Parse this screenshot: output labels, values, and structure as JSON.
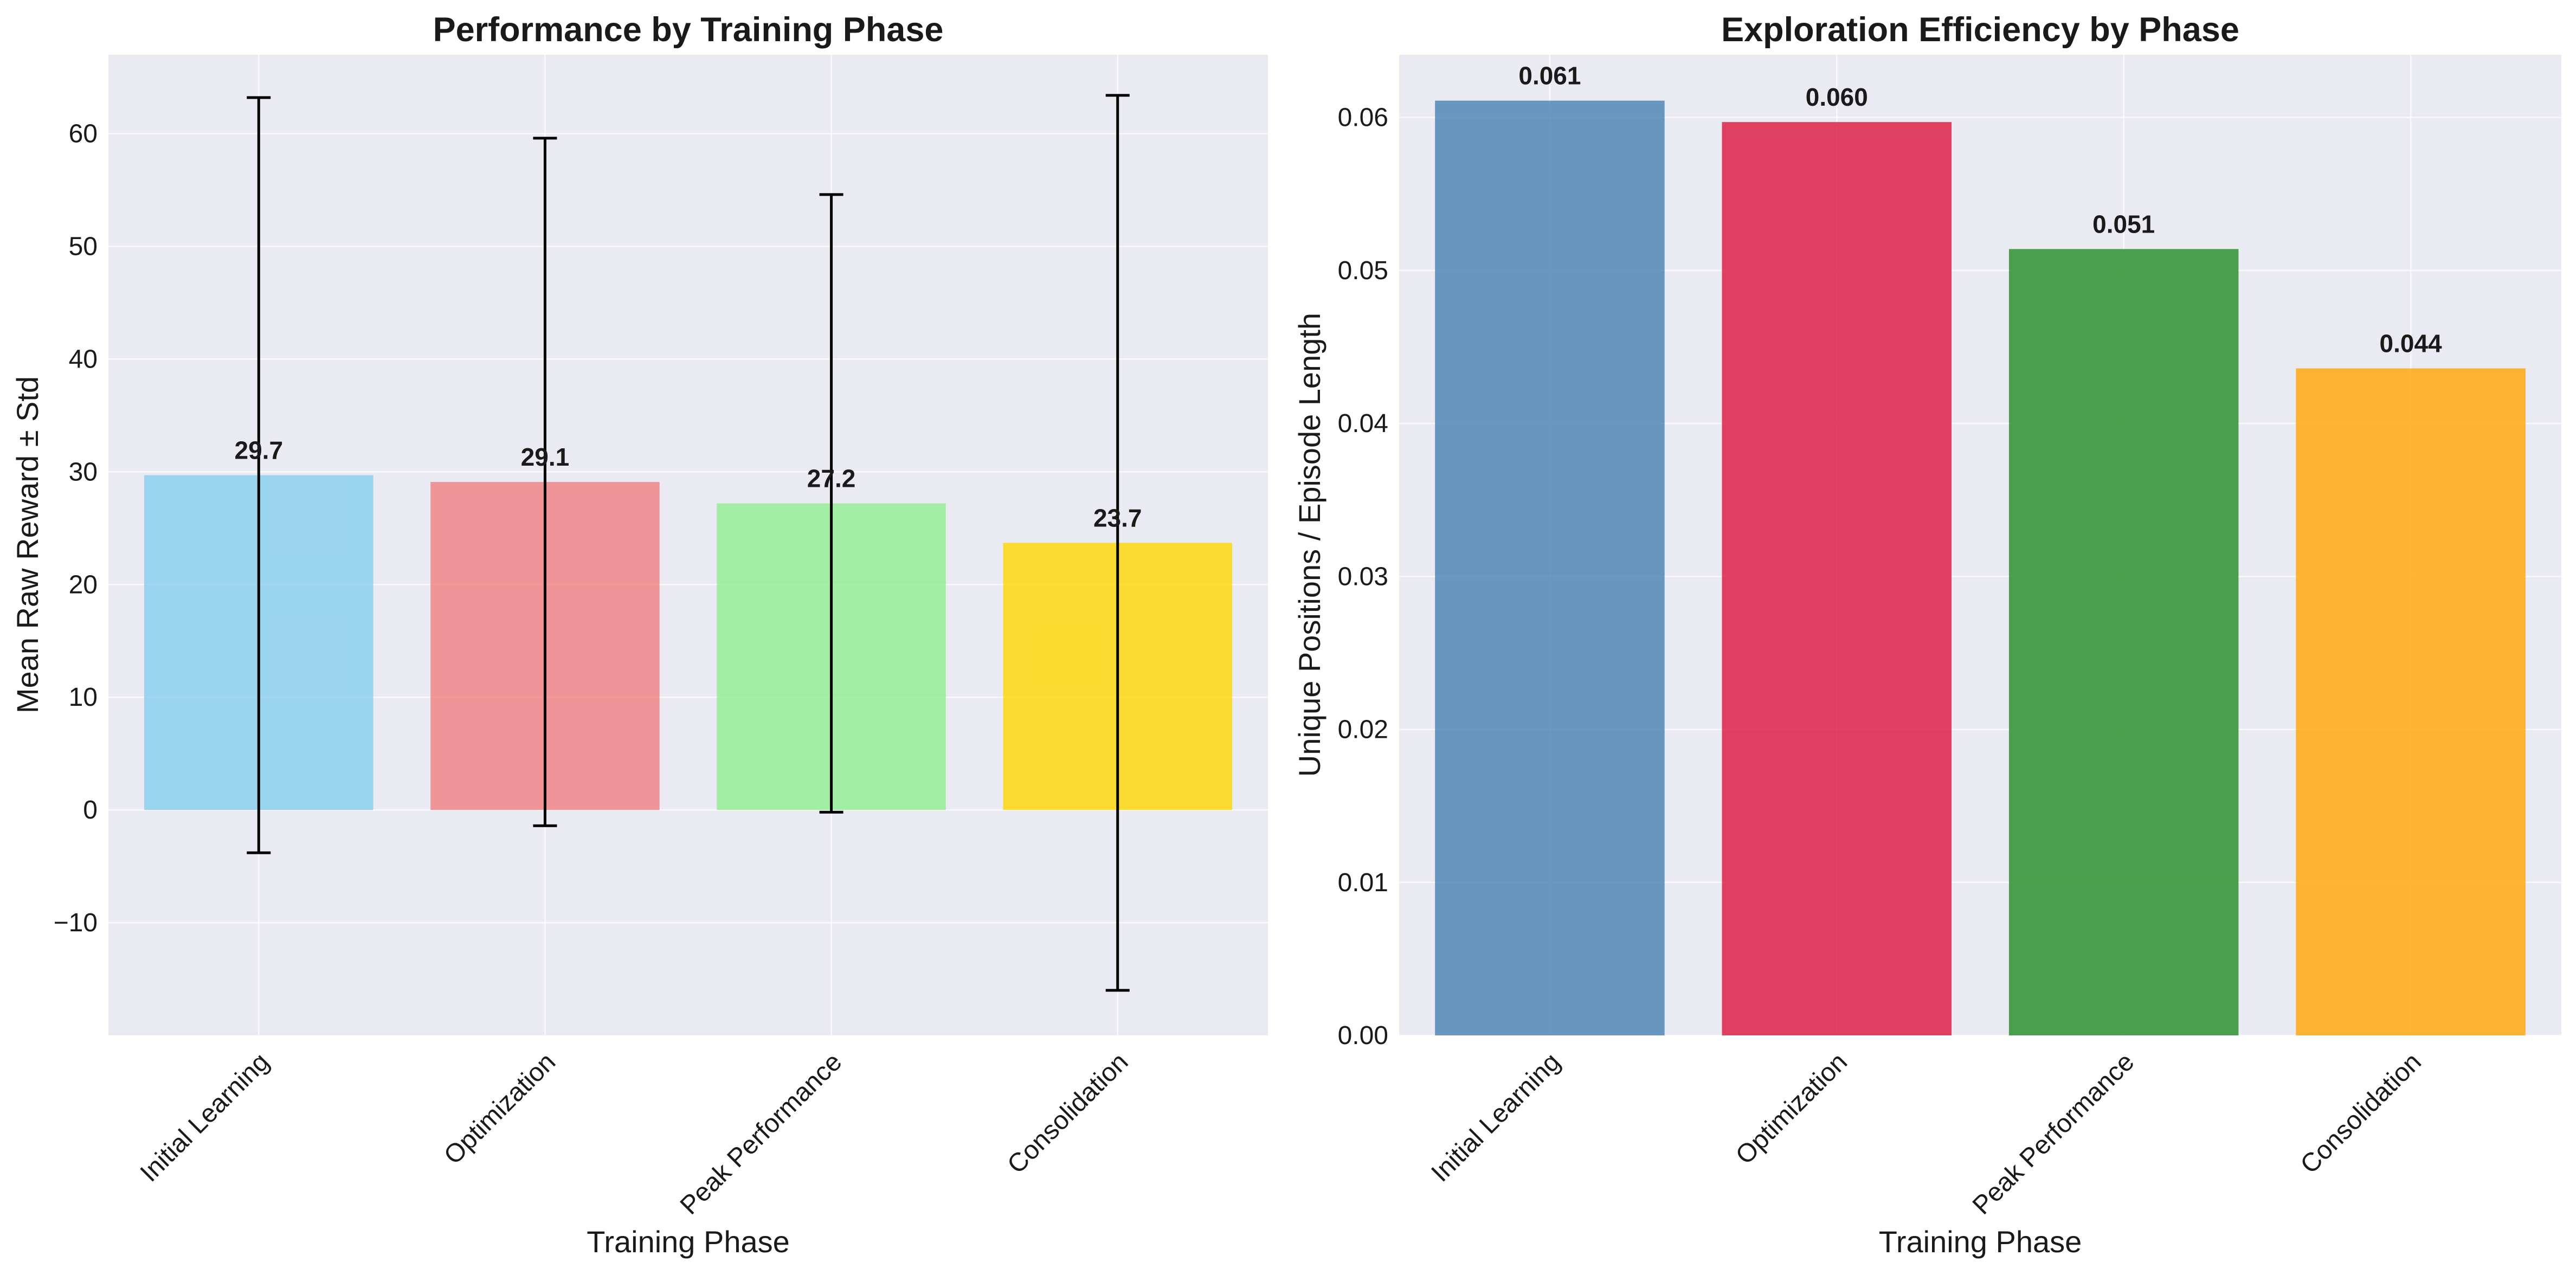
{
  "chart_data": [
    {
      "type": "bar",
      "title": "Performance by Training Phase",
      "xlabel": "Training Phase",
      "ylabel": "Mean Raw Reward ± Std",
      "categories": [
        "Initial Learning",
        "Optimization",
        "Peak Performance",
        "Consolidation"
      ],
      "values": [
        29.7,
        29.1,
        27.2,
        23.7
      ],
      "value_labels": [
        "29.7",
        "29.1",
        "27.2",
        "23.7"
      ],
      "error": [
        33.5,
        30.5,
        27.4,
        39.7
      ],
      "ylim": [
        -20,
        67
      ],
      "yticks": [
        -10,
        0,
        10,
        20,
        30,
        40,
        50,
        60
      ],
      "ytick_labels": [
        "−10",
        "0",
        "10",
        "20",
        "30",
        "40",
        "50",
        "60"
      ],
      "colors": [
        "#87ceeb",
        "#f08080",
        "#90ee90",
        "#ffd700"
      ],
      "bar_opacity": 0.8,
      "grid": true
    },
    {
      "type": "bar",
      "title": "Exploration Efficiency by Phase",
      "xlabel": "Training Phase",
      "ylabel": "Unique Positions / Episode Length",
      "categories": [
        "Initial Learning",
        "Optimization",
        "Peak Performance",
        "Consolidation"
      ],
      "values": [
        0.0611,
        0.0597,
        0.0514,
        0.0436
      ],
      "value_labels": [
        "0.061",
        "0.060",
        "0.051",
        "0.044"
      ],
      "ylim": [
        0,
        0.0641
      ],
      "yticks": [
        0,
        0.01,
        0.02,
        0.03,
        0.04,
        0.05,
        0.06
      ],
      "ytick_labels": [
        "0.00",
        "0.01",
        "0.02",
        "0.03",
        "0.04",
        "0.05",
        "0.06"
      ],
      "colors": [
        "#4682b4",
        "#dc143c",
        "#228b22",
        "#ffa500"
      ],
      "bar_opacity": 0.8,
      "grid": true
    }
  ],
  "style": {
    "plot_background": "#eaeaf2",
    "grid_color": "#ffffff",
    "errorbar_color": "#000000"
  }
}
